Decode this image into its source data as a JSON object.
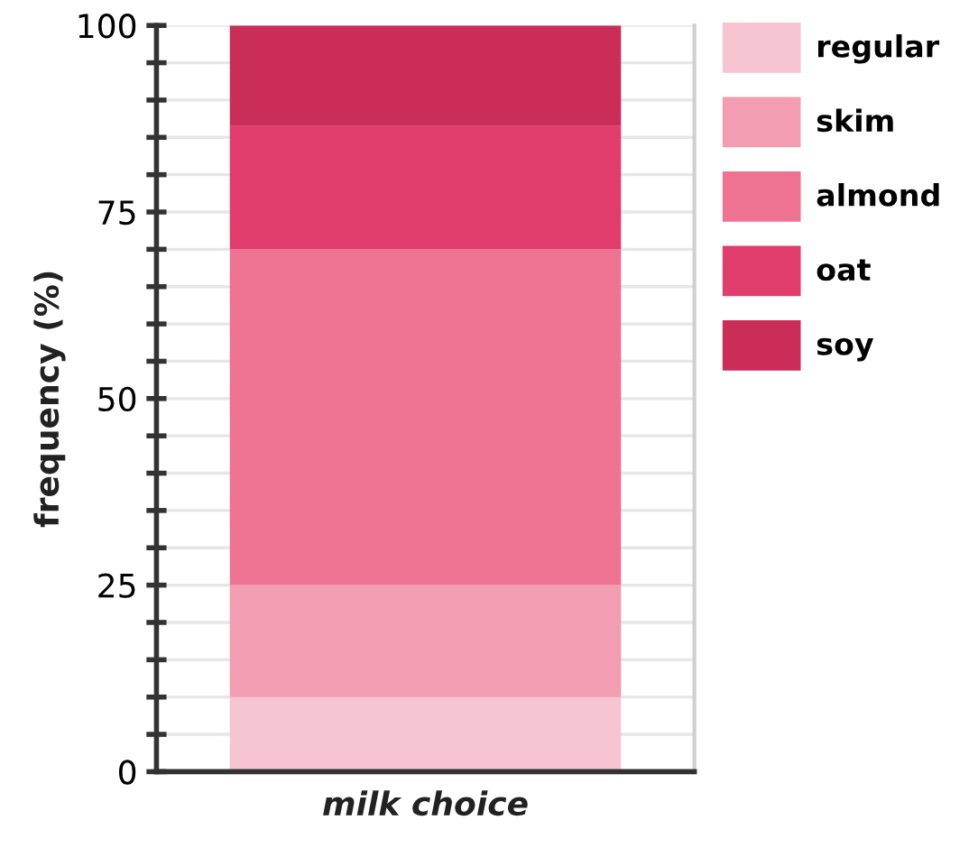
{
  "chart_data": {
    "type": "bar",
    "stacked": true,
    "categories": [
      null
    ],
    "series": [
      {
        "name": "regular",
        "color": "#f7c5d2",
        "values": [
          10
        ]
      },
      {
        "name": "skim",
        "color": "#f29db1",
        "values": [
          15
        ]
      },
      {
        "name": "almond",
        "color": "#ee7291",
        "values": [
          45
        ]
      },
      {
        "name": "oat",
        "color": "#e13d6c",
        "values": [
          16.5
        ]
      },
      {
        "name": "soy",
        "color": "#c92d58",
        "values": [
          13.5
        ]
      }
    ],
    "xlabel": "milk choice",
    "ylabel": "frequency (%)",
    "ylim": [
      0,
      100
    ],
    "yticks": [
      0,
      {
        "value": 5,
        "label": null
      },
      {
        "value": 10,
        "label": null
      },
      {
        "value": 15,
        "label": null
      },
      {
        "value": 20,
        "label": null
      },
      25,
      {
        "value": 30,
        "label": null
      },
      {
        "value": 35,
        "label": null
      },
      {
        "value": 40,
        "label": null
      },
      {
        "value": 45,
        "label": null
      },
      50,
      {
        "value": 55,
        "label": null
      },
      {
        "value": 60,
        "label": null
      },
      {
        "value": 65,
        "label": null
      },
      {
        "value": 70,
        "label": null
      },
      75,
      {
        "value": 80,
        "label": null
      },
      {
        "value": 85,
        "label": null
      },
      {
        "value": 90,
        "label": null
      },
      {
        "value": 95,
        "label": null
      },
      100
    ],
    "grid": "y",
    "legend": "top right"
  }
}
